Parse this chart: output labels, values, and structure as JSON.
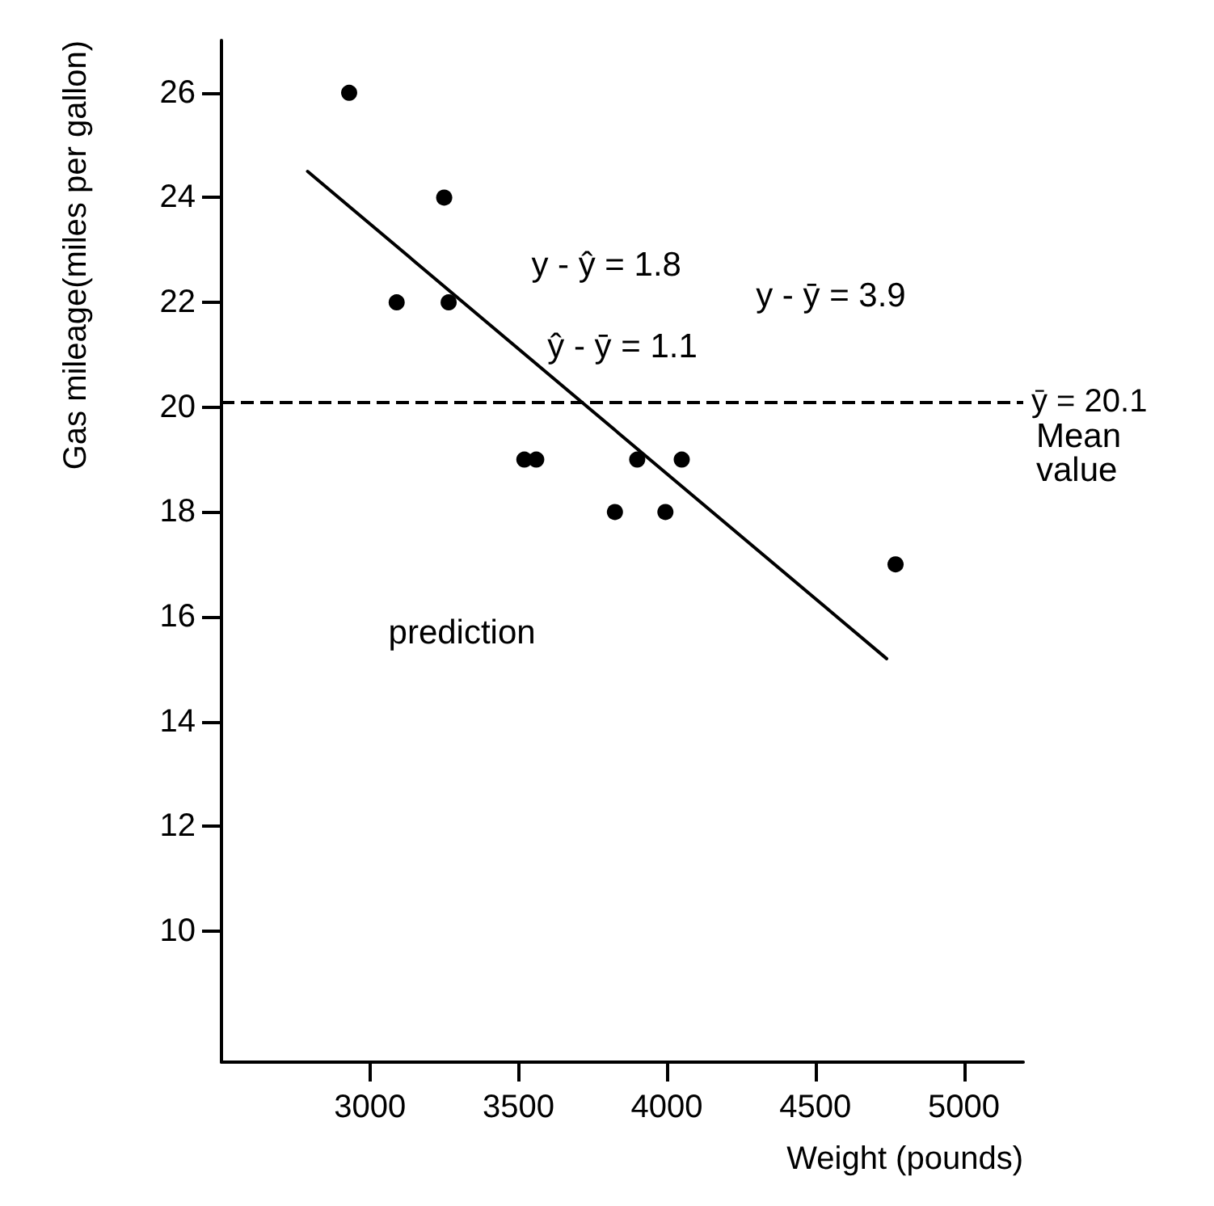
{
  "chart_data": {
    "type": "scatter",
    "xlabel": "Weight (pounds)",
    "ylabel": "Gas mileage(miles per gallon)",
    "marker": "circle",
    "series": [
      {
        "color": "#000000",
        "x": [
          2930,
          3250,
          3090,
          3265,
          3520,
          3560,
          3900,
          4050,
          3825,
          3995,
          4770
        ],
        "values": [
          26,
          24,
          22,
          22,
          19,
          19,
          19,
          19,
          18,
          18,
          17
        ]
      },
      {
        "type": "line",
        "color": "#000000",
        "marker": "none",
        "x": [
          2790,
          4740
        ],
        "values": [
          24.5,
          15.2
        ]
      }
    ],
    "xlim": [
      2500,
      5200
    ],
    "ylim": [
      7.5,
      27
    ],
    "xticks": [
      3000,
      3500,
      4000,
      4500,
      5000
    ],
    "yticks": [
      10,
      12,
      14,
      16,
      18,
      20,
      22,
      24,
      26
    ],
    "grid": false,
    "ref_lines": [
      {
        "axis": "y",
        "value": 20.1,
        "label": "ȳ = 20.1",
        "line_style": "dashed",
        "color": "#000000"
      }
    ],
    "annotations": [
      "y - ŷ = 1.8",
      "ŷ - ȳ = 1.1",
      "y - ȳ = 3.9",
      "prediction",
      "Mean value"
    ]
  }
}
